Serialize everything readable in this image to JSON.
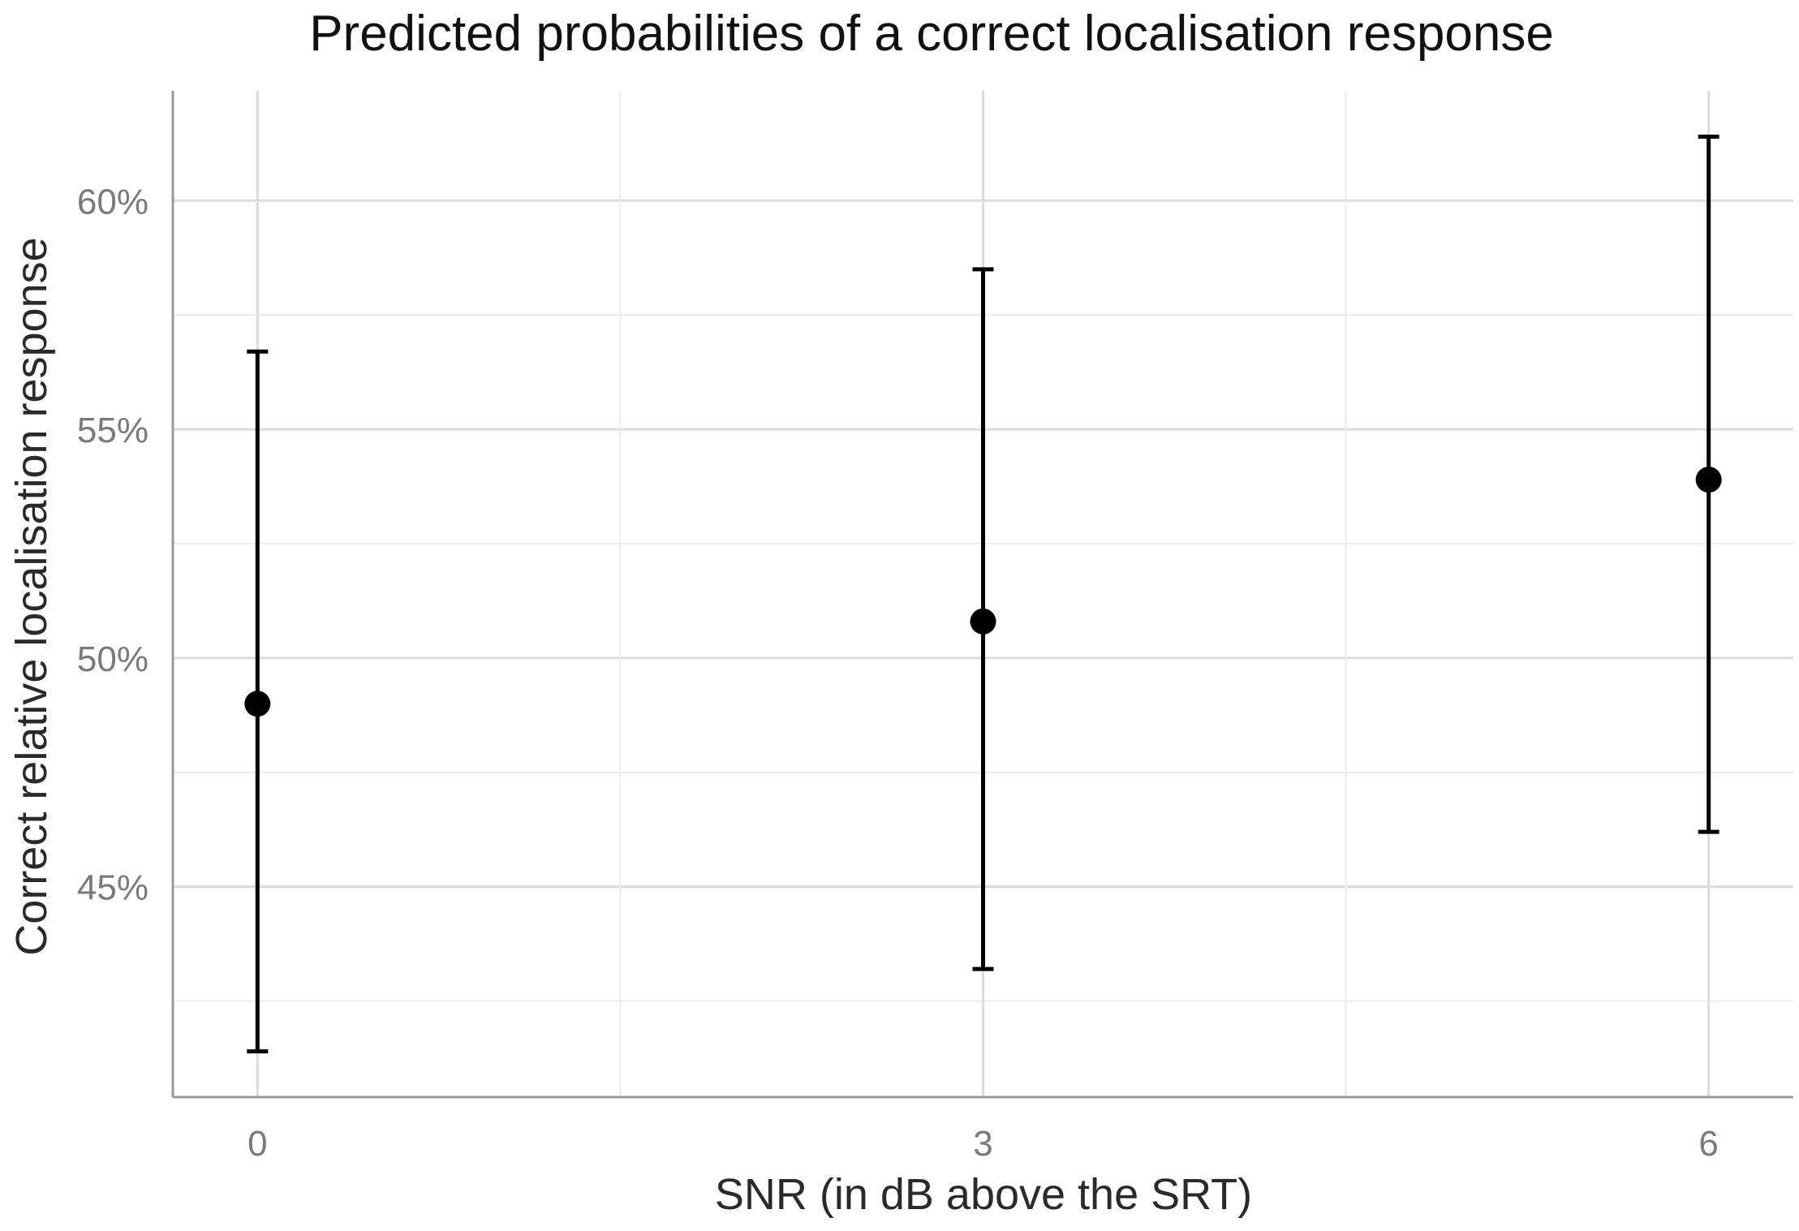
{
  "chart_data": {
    "type": "scatter",
    "title": "Predicted probabilities of a correct localisation response",
    "xlabel": "SNR (in dB above the SRT)",
    "ylabel": "Correct relative localisation response",
    "x_ticks": [
      "0",
      "3",
      "6"
    ],
    "y_ticks": [
      "45%",
      "50%",
      "55%",
      "60%"
    ],
    "xlim": [
      -0.35,
      6.35
    ],
    "ylim": [
      40.4,
      62.4
    ],
    "grid": true,
    "points": [
      {
        "x": 0,
        "y": 49.0,
        "lower": 41.4,
        "upper": 56.7
      },
      {
        "x": 3,
        "y": 50.8,
        "lower": 43.2,
        "upper": 58.5
      },
      {
        "x": 6,
        "y": 53.9,
        "lower": 46.2,
        "upper": 61.4
      }
    ],
    "colors": {
      "points": "#000000",
      "error_bars": "#000000",
      "grid": "#dcdcdc"
    }
  }
}
